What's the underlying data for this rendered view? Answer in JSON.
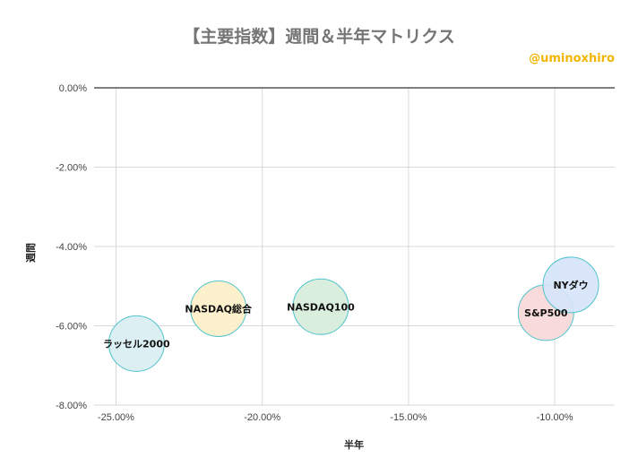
{
  "page": {
    "title": "【主要指数】週間＆半年マトリクス",
    "credit": "@uminoxhiro",
    "credit_color": "#f2b600"
  },
  "chart_data": {
    "type": "scatter",
    "subtype": "bubble",
    "title": "【主要指数】週間＆半年マトリクス",
    "xlabel": "半年",
    "ylabel": "週間",
    "x_unit": "percent",
    "y_unit": "percent",
    "xlim": [
      -25.75,
      -7.95
    ],
    "ylim": [
      -8.0,
      0.0
    ],
    "x_ticks": [
      -25.0,
      -20.0,
      -15.0,
      -10.0
    ],
    "x_tick_labels": [
      "-25.00%",
      "-20.00%",
      "-15.00%",
      "-10.00%"
    ],
    "y_ticks": [
      0.0,
      -2.0,
      -4.0,
      -6.0,
      -8.0
    ],
    "y_tick_labels": [
      "0.00%",
      "-2.00%",
      "-4.00%",
      "-6.00%",
      "-8.00%"
    ],
    "grid": true,
    "legend": "none",
    "points": [
      {
        "label": "ラッセル2000",
        "x": -24.3,
        "y": -6.45,
        "fill": "#d8eef2",
        "stroke": "#4fc3cd"
      },
      {
        "label": "NASDAQ総合",
        "x": -21.5,
        "y": -5.57,
        "fill": "#fdf0c8",
        "stroke": "#4fc3cd"
      },
      {
        "label": "NASDAQ100",
        "x": -18.0,
        "y": -5.52,
        "fill": "#d5ecd9",
        "stroke": "#4fc3cd"
      },
      {
        "label": "S&P500",
        "x": -10.3,
        "y": -5.67,
        "fill": "#f8d7d7",
        "stroke": "#4fc3cd"
      },
      {
        "label": "NYダウ",
        "x": -9.45,
        "y": -4.97,
        "fill": "#d6e4fb",
        "stroke": "#4fc3cd"
      }
    ],
    "colors": {
      "grid": "#d9d9d9",
      "zero_line": "#333333",
      "bubble_stroke": "#4fc3cd"
    }
  }
}
